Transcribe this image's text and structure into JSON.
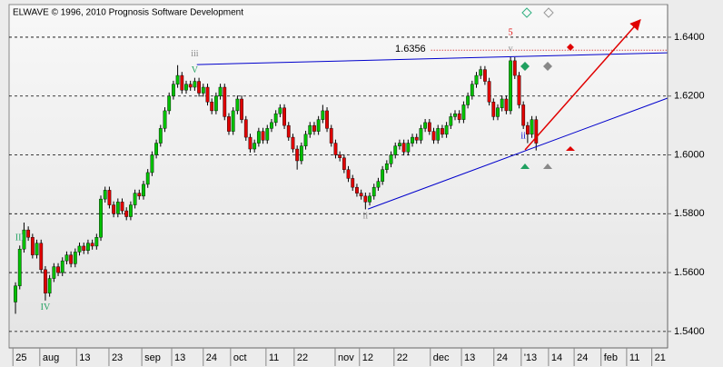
{
  "chart_data": {
    "type": "candlestick",
    "title": "ELWAVE © 1996, 2010 Prognosis Software Development",
    "up_color": "#00c000",
    "down_color": "#e00000",
    "open": [
      1.55,
      1.5555,
      1.568,
      1.5745,
      1.572,
      1.566,
      1.57,
      1.561,
      1.553,
      1.558,
      1.562,
      1.56,
      1.564,
      1.566,
      1.563,
      1.567,
      1.569,
      1.5675,
      1.57,
      1.569,
      1.572,
      1.585,
      1.588,
      1.583,
      1.58,
      1.584,
      1.581,
      1.579,
      1.583,
      1.587,
      1.586,
      1.59,
      1.594,
      1.6,
      1.604,
      1.609,
      1.615,
      1.62,
      1.624,
      1.627,
      1.622,
      1.624,
      1.623,
      1.625,
      1.621,
      1.623,
      1.618,
      1.615,
      1.62,
      1.623,
      1.613,
      1.608,
      1.615,
      1.619,
      1.612,
      1.606,
      1.602,
      1.604,
      1.608,
      1.605,
      1.609,
      1.611,
      1.614,
      1.616,
      1.61,
      1.606,
      1.602,
      1.598,
      1.603,
      1.607,
      1.61,
      1.608,
      1.612,
      1.615,
      1.609,
      1.604,
      1.6,
      1.599,
      1.595,
      1.592,
      1.589,
      1.587,
      1.586,
      1.584,
      1.586,
      1.589,
      1.591,
      1.595,
      1.597,
      1.6,
      1.603,
      1.604,
      1.601,
      1.604,
      1.606,
      1.605,
      1.609,
      1.611,
      1.608,
      1.605,
      1.609,
      1.607,
      1.61,
      1.613,
      1.614,
      1.612,
      1.617,
      1.62,
      1.624,
      1.627,
      1.629,
      1.625,
      1.618,
      1.613,
      1.616,
      1.619,
      1.615,
      1.632,
      1.627,
      1.617,
      1.61,
      1.607,
      1.612
    ],
    "high": [
      1.5567,
      1.5692,
      1.577,
      1.5757,
      1.5732,
      1.5712,
      1.5712,
      1.5622,
      1.5592,
      1.5632,
      1.5632,
      1.5652,
      1.5672,
      1.5672,
      1.5682,
      1.5702,
      1.5702,
      1.5712,
      1.5712,
      1.5732,
      1.5862,
      1.5892,
      1.5892,
      1.5842,
      1.5852,
      1.5852,
      1.5822,
      1.5842,
      1.5882,
      1.5882,
      1.5912,
      1.5952,
      1.6012,
      1.6052,
      1.6102,
      1.6162,
      1.6212,
      1.6252,
      1.6305,
      1.6282,
      1.6252,
      1.6252,
      1.6262,
      1.6262,
      1.6242,
      1.6242,
      1.6192,
      1.6212,
      1.6242,
      1.6242,
      1.6142,
      1.6162,
      1.6202,
      1.6202,
      1.6132,
      1.6072,
      1.6052,
      1.6092,
      1.6092,
      1.6102,
      1.6122,
      1.6152,
      1.6172,
      1.6172,
      1.6112,
      1.6072,
      1.6032,
      1.6042,
      1.6082,
      1.6112,
      1.6112,
      1.6132,
      1.617,
      1.6162,
      1.6102,
      1.6052,
      1.6012,
      1.6002,
      1.5962,
      1.5932,
      1.5902,
      1.5882,
      1.5872,
      1.5872,
      1.5902,
      1.5922,
      1.5962,
      1.5982,
      1.6012,
      1.6042,
      1.6052,
      1.6052,
      1.6052,
      1.6072,
      1.6072,
      1.6102,
      1.6122,
      1.6122,
      1.6092,
      1.6102,
      1.6102,
      1.6112,
      1.6142,
      1.6152,
      1.6152,
      1.6182,
      1.6212,
      1.6252,
      1.6282,
      1.6302,
      1.6302,
      1.6262,
      1.6192,
      1.6172,
      1.6202,
      1.6202,
      1.6335,
      1.6332,
      1.6282,
      1.6182,
      1.6112,
      1.6132,
      1.6132
    ],
    "low": [
      1.546,
      1.5543,
      1.5668,
      1.5708,
      1.5648,
      1.5648,
      1.5598,
      1.5505,
      1.5518,
      1.5568,
      1.5588,
      1.5588,
      1.5628,
      1.5618,
      1.5618,
      1.5658,
      1.5663,
      1.5663,
      1.5678,
      1.5678,
      1.5708,
      1.5838,
      1.5818,
      1.5788,
      1.5788,
      1.5798,
      1.5778,
      1.5778,
      1.5818,
      1.5848,
      1.5848,
      1.5888,
      1.5928,
      1.5988,
      1.6028,
      1.6078,
      1.6138,
      1.6188,
      1.6228,
      1.6208,
      1.6208,
      1.6218,
      1.6218,
      1.6198,
      1.6198,
      1.6168,
      1.6138,
      1.6138,
      1.6188,
      1.6118,
      1.6068,
      1.6068,
      1.6138,
      1.6108,
      1.6048,
      1.6008,
      1.6008,
      1.6028,
      1.6038,
      1.6038,
      1.6078,
      1.6098,
      1.6128,
      1.6088,
      1.6048,
      1.6008,
      1.595,
      1.5968,
      1.6018,
      1.6058,
      1.6068,
      1.6068,
      1.6108,
      1.6078,
      1.6028,
      1.5988,
      1.5978,
      1.5938,
      1.5908,
      1.5878,
      1.5858,
      1.5848,
      1.5815,
      1.5828,
      1.5848,
      1.5878,
      1.5898,
      1.5938,
      1.5958,
      1.5988,
      1.6018,
      1.5998,
      1.5998,
      1.6028,
      1.6038,
      1.6038,
      1.6078,
      1.6068,
      1.6038,
      1.6038,
      1.6058,
      1.6058,
      1.6088,
      1.6118,
      1.6108,
      1.6108,
      1.6158,
      1.6188,
      1.6228,
      1.6258,
      1.6238,
      1.6168,
      1.6118,
      1.6118,
      1.6148,
      1.6138,
      1.6138,
      1.6258,
      1.6158,
      1.6088,
      1.604,
      1.6058,
      1.6015
    ],
    "close": [
      1.5555,
      1.568,
      1.5745,
      1.572,
      1.566,
      1.57,
      1.561,
      1.553,
      1.558,
      1.562,
      1.56,
      1.564,
      1.566,
      1.563,
      1.567,
      1.569,
      1.5675,
      1.57,
      1.569,
      1.572,
      1.585,
      1.588,
      1.583,
      1.58,
      1.584,
      1.581,
      1.579,
      1.583,
      1.587,
      1.586,
      1.59,
      1.594,
      1.6,
      1.604,
      1.609,
      1.615,
      1.62,
      1.624,
      1.627,
      1.622,
      1.624,
      1.623,
      1.625,
      1.621,
      1.623,
      1.618,
      1.615,
      1.62,
      1.623,
      1.613,
      1.608,
      1.615,
      1.619,
      1.612,
      1.606,
      1.602,
      1.604,
      1.608,
      1.605,
      1.609,
      1.611,
      1.614,
      1.616,
      1.61,
      1.606,
      1.602,
      1.598,
      1.603,
      1.607,
      1.61,
      1.608,
      1.612,
      1.615,
      1.609,
      1.604,
      1.6,
      1.599,
      1.595,
      1.592,
      1.589,
      1.587,
      1.586,
      1.584,
      1.586,
      1.589,
      1.591,
      1.595,
      1.597,
      1.6,
      1.603,
      1.604,
      1.601,
      1.604,
      1.606,
      1.605,
      1.609,
      1.611,
      1.608,
      1.605,
      1.609,
      1.607,
      1.61,
      1.613,
      1.614,
      1.612,
      1.617,
      1.62,
      1.624,
      1.627,
      1.629,
      1.625,
      1.618,
      1.613,
      1.616,
      1.619,
      1.615,
      1.632,
      1.627,
      1.617,
      1.61,
      1.607,
      1.612,
      1.604
    ],
    "xlim": [
      -1.5,
      152.8
    ],
    "xticks": [
      {
        "value": -0.6,
        "label": "25"
      },
      {
        "value": 5.7,
        "label": "aug"
      },
      {
        "value": 14.3,
        "label": "13"
      },
      {
        "value": 21.9,
        "label": "23"
      },
      {
        "value": 29.6,
        "label": "sep"
      },
      {
        "value": 36.6,
        "label": "13"
      },
      {
        "value": 44.0,
        "label": "24"
      },
      {
        "value": 50.4,
        "label": "oct"
      },
      {
        "value": 58.7,
        "label": "11"
      },
      {
        "value": 65.3,
        "label": "22"
      },
      {
        "value": 74.9,
        "label": "nov"
      },
      {
        "value": 80.6,
        "label": "12"
      },
      {
        "value": 88.7,
        "label": "22"
      },
      {
        "value": 97.2,
        "label": "dec"
      },
      {
        "value": 104.5,
        "label": "13"
      },
      {
        "value": 112.1,
        "label": "24"
      },
      {
        "value": 118.5,
        "label": "'13"
      },
      {
        "value": 124.9,
        "label": "14"
      },
      {
        "value": 130.9,
        "label": "24"
      },
      {
        "value": 137.2,
        "label": "feb"
      },
      {
        "value": 143.2,
        "label": "11"
      },
      {
        "value": 149.1,
        "label": "21"
      }
    ],
    "ylim": [
      1.5344,
      1.6511
    ],
    "yticks": [
      {
        "value": 1.54,
        "label": "1.5400"
      },
      {
        "value": 1.56,
        "label": "1.5600"
      },
      {
        "value": 1.58,
        "label": "1.5800"
      },
      {
        "value": 1.6,
        "label": "1.6000"
      },
      {
        "value": 1.62,
        "label": "1.6200"
      },
      {
        "value": 1.64,
        "label": "1.6400"
      }
    ],
    "grid": true,
    "trendlines": [
      {
        "x": [
          42.5,
          152.8
        ],
        "y": [
          1.6307,
          1.6347
        ],
        "color": "#0000cc"
      },
      {
        "x": [
          82.6,
          152.8
        ],
        "y": [
          1.5816,
          1.6193
        ],
        "color": "#0000cc"
      }
    ],
    "arrow": {
      "x": [
        119.4,
        146.4
      ],
      "y": [
        1.6017,
        1.6459
      ],
      "color": "#e00000"
    },
    "level": {
      "value": 1.6356,
      "start": 97.4,
      "color": "#cc0000"
    },
    "wave_labels": [
      {
        "text": "III",
        "bar": 1,
        "side": "above",
        "color": "#20a060"
      },
      {
        "text": "IV",
        "bar": 7,
        "side": "below",
        "color": "#20a060"
      },
      {
        "text": "V",
        "bar": 42,
        "side": "above",
        "color": "#20a060"
      },
      {
        "text": "iii",
        "bar": 42,
        "side": "above",
        "color": "#888888"
      },
      {
        "text": "ii",
        "bar": 82,
        "side": "below",
        "color": "#888888"
      },
      {
        "text": "v",
        "bar": 116,
        "side": "above",
        "color": "#888888"
      },
      {
        "text": "5",
        "bar": 116,
        "side": "above",
        "color": "#e00000"
      },
      {
        "text": "ii",
        "bar": 119,
        "side": "below",
        "color": "#0000cc"
      }
    ]
  }
}
